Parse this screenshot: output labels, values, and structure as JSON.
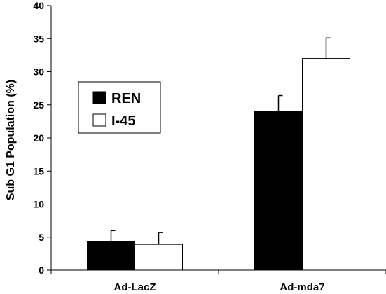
{
  "chart_data": {
    "type": "bar",
    "title": "",
    "xlabel": "",
    "ylabel": "Sub G1 Population (%)",
    "ylim": [
      0,
      40
    ],
    "yticks": [
      0,
      5,
      10,
      15,
      20,
      25,
      30,
      35,
      40
    ],
    "categories": [
      "Ad-LacZ",
      "Ad-mda7"
    ],
    "series": [
      {
        "name": "REN",
        "values": [
          4.3,
          24.0
        ],
        "errors": [
          1.7,
          2.4
        ],
        "color": "#000000"
      },
      {
        "name": "I-45",
        "values": [
          3.9,
          32.0
        ],
        "errors": [
          1.8,
          3.1
        ],
        "color": "#ffffff"
      }
    ],
    "grid": false,
    "legend_position": "left"
  }
}
